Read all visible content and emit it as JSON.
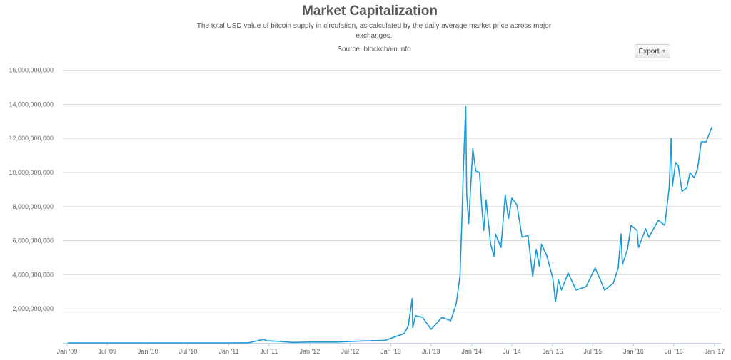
{
  "chart_data": {
    "type": "line",
    "title": "Market Capitalization",
    "subtitle": "The total USD value of bitcoin supply in circulation, as calculated by the daily average market price across major exchanges.",
    "source": "Source: blockchain.info",
    "xlabel": "",
    "ylabel": "",
    "xlim": [
      "2009-01-01",
      "2017-01-01"
    ],
    "ylim": [
      0,
      16000000000
    ],
    "grid": true,
    "legend": "none",
    "line_color": "#1a9bd7",
    "y_ticks": [
      "2,000,000,000",
      "4,000,000,000",
      "6,000,000,000",
      "8,000,000,000",
      "10,000,000,000",
      "12,000,000,000",
      "14,000,000,000",
      "16,000,000,000"
    ],
    "y_tick_values": [
      2000000000,
      4000000000,
      6000000000,
      8000000000,
      10000000000,
      12000000000,
      14000000000,
      16000000000
    ],
    "x_ticks": [
      "Jan '09",
      "Jul '09",
      "Jan '10",
      "Jul '10",
      "Jan '11",
      "Jul '11",
      "Jan '12",
      "Jul '12",
      "Jan '13",
      "Jul '13",
      "Jan '14",
      "Jul '14",
      "Jan '15",
      "Jul '15",
      "Jan '16",
      "Jul '16",
      "Jan '17"
    ],
    "x_tick_dates": [
      "2009-01-01",
      "2009-07-01",
      "2010-01-01",
      "2010-07-01",
      "2011-01-01",
      "2011-07-01",
      "2012-01-01",
      "2012-07-01",
      "2013-01-01",
      "2013-07-01",
      "2014-01-01",
      "2014-07-01",
      "2015-01-01",
      "2015-07-01",
      "2016-01-01",
      "2016-07-01",
      "2017-01-01"
    ],
    "series": [
      {
        "x": [
          "2009-01-03",
          "2010-07-01",
          "2011-01-01",
          "2011-04-01",
          "2011-06-08",
          "2011-06-20",
          "2011-08-01",
          "2011-10-15",
          "2012-01-01",
          "2012-05-01",
          "2012-08-15",
          "2012-10-01",
          "2012-12-07",
          "2013-03-02",
          "2013-03-21",
          "2013-04-07",
          "2013-04-10",
          "2013-04-22",
          "2013-05-24",
          "2013-07-02",
          "2013-08-20",
          "2013-09-28",
          "2013-10-23",
          "2013-11-09",
          "2013-11-18",
          "2013-11-24",
          "2013-12-05",
          "2013-12-09",
          "2013-12-18",
          "2014-01-06",
          "2014-01-19",
          "2014-02-05",
          "2014-02-15",
          "2014-02-24",
          "2014-03-07",
          "2014-03-27",
          "2014-04-12",
          "2014-04-18",
          "2014-05-13",
          "2014-06-01",
          "2014-06-16",
          "2014-07-01",
          "2014-07-24",
          "2014-08-16",
          "2014-09-12",
          "2014-10-03",
          "2014-10-19",
          "2014-11-02",
          "2014-11-12",
          "2014-12-06",
          "2015-01-02",
          "2015-01-14",
          "2015-01-27",
          "2015-02-10",
          "2015-03-12",
          "2015-04-17",
          "2015-06-01",
          "2015-07-12",
          "2015-08-24",
          "2015-10-02",
          "2015-10-24",
          "2015-11-06",
          "2015-11-12",
          "2015-12-05",
          "2015-12-21",
          "2016-01-17",
          "2016-01-24",
          "2016-02-25",
          "2016-03-11",
          "2016-04-22",
          "2016-05-21",
          "2016-06-01",
          "2016-06-10",
          "2016-06-19",
          "2016-06-25",
          "2016-07-09",
          "2016-07-21",
          "2016-08-07",
          "2016-08-29",
          "2016-09-12",
          "2016-10-01",
          "2016-10-16",
          "2016-11-02",
          "2016-11-24",
          "2016-12-21"
        ],
        "values": [
          0,
          200000,
          1500000,
          7000000,
          210000000,
          120000000,
          100000000,
          30000000,
          50000000,
          50000000,
          110000000,
          120000000,
          150000000,
          550000000,
          1000000000,
          2600000000,
          900000000,
          1600000000,
          1500000000,
          800000000,
          1500000000,
          1300000000,
          2300000000,
          3900000000,
          7300000000,
          10100000000,
          13900000000,
          8800000000,
          7000000000,
          11400000000,
          10100000000,
          10000000000,
          8000000000,
          6600000000,
          8400000000,
          5800000000,
          5100000000,
          6400000000,
          5600000000,
          8700000000,
          7300000000,
          8500000000,
          8100000000,
          6200000000,
          6300000000,
          3900000000,
          5500000000,
          4500000000,
          5800000000,
          5100000000,
          3800000000,
          2400000000,
          3700000000,
          3100000000,
          4100000000,
          3100000000,
          3300000000,
          4400000000,
          3100000000,
          3500000000,
          4400000000,
          6400000000,
          4600000000,
          5500000000,
          6900000000,
          6600000000,
          5600000000,
          6700000000,
          6200000000,
          7200000000,
          6900000000,
          8100000000,
          9100000000,
          12000000000,
          9200000000,
          10600000000,
          10400000000,
          8900000000,
          9100000000,
          10000000000,
          9700000000,
          10200000000,
          11800000000,
          11800000000,
          12700000000
        ]
      }
    ]
  },
  "toolbar": {
    "export_label": "Export",
    "export_icon": "caret-down-icon"
  }
}
